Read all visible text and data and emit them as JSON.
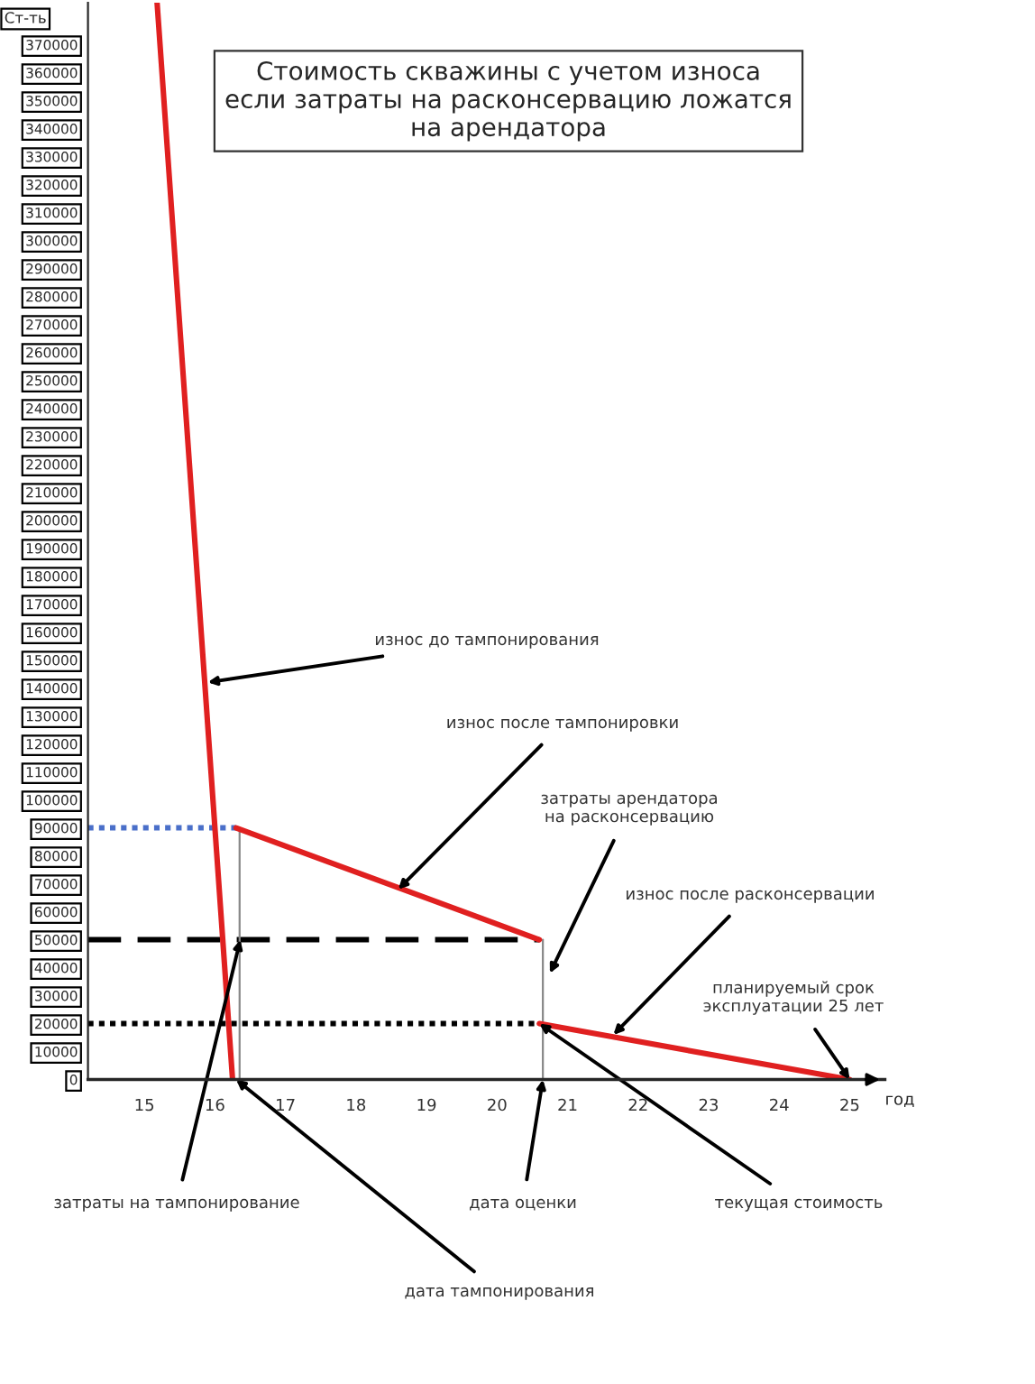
{
  "chart_data": {
    "type": "line",
    "title": "Стоимость скважины с учетом износа\nесли затраты на расконсервацию ложатся\nна арендатора",
    "xlabel": "год",
    "ylabel": "Ст-ть",
    "xlim": [
      14.2,
      25.5
    ],
    "xticks": [
      15,
      16,
      17,
      18,
      19,
      20,
      21,
      22,
      23,
      24,
      25
    ],
    "ylim": [
      0,
      385000
    ],
    "yticks": [
      0,
      10000,
      20000,
      30000,
      40000,
      50000,
      60000,
      70000,
      80000,
      90000,
      100000,
      110000,
      120000,
      130000,
      140000,
      150000,
      160000,
      170000,
      180000,
      190000,
      200000,
      210000,
      220000,
      230000,
      240000,
      250000,
      260000,
      270000,
      280000,
      290000,
      300000,
      310000,
      320000,
      330000,
      340000,
      350000,
      360000,
      370000
    ],
    "grid": false,
    "legend": false,
    "marker": "none",
    "series": [
      {
        "color": "#4a6fc9",
        "line_style": "dotted",
        "x": [
          14.2,
          16.3
        ],
        "values": [
          90000,
          90000
        ]
      },
      {
        "color": "#000000",
        "line_style": "dashed",
        "x": [
          14.2,
          20.6
        ],
        "values": [
          50000,
          50000
        ]
      },
      {
        "color": "#000000",
        "line_style": "dotted",
        "x": [
          14.2,
          20.6
        ],
        "values": [
          20000,
          20000
        ]
      },
      {
        "color": "#888888",
        "line_style": "solid",
        "x": [
          16.35,
          16.35
        ],
        "values": [
          0,
          90000
        ]
      },
      {
        "color": "#888888",
        "line_style": "solid",
        "x": [
          20.65,
          20.65
        ],
        "values": [
          0,
          50000
        ]
      },
      {
        "color": "#e02020",
        "line_style": "solid",
        "x": [
          15.18,
          16.25
        ],
        "values": [
          385000,
          0
        ]
      },
      {
        "color": "#e02020",
        "line_style": "solid",
        "x": [
          16.3,
          20.6
        ],
        "values": [
          90000,
          50000
        ]
      },
      {
        "color": "#e02020",
        "line_style": "solid",
        "x": [
          20.6,
          25
        ],
        "values": [
          20000,
          0
        ]
      }
    ],
    "annotations": [
      {
        "text": "износ до тампонирования",
        "x": 15.9,
        "y": 142000
      },
      {
        "text": "износ после тампонировки",
        "x": 18.6,
        "y": 68000
      },
      {
        "text": "затраты арендатора\nна расконсервацию",
        "x": 20.75,
        "y": 38000
      },
      {
        "text": "износ после расконсервации",
        "x": 21.65,
        "y": 16000
      },
      {
        "text": "планируемый срок\nэксплуатации 25 лет",
        "x": 25,
        "y": 0
      },
      {
        "text": "затраты на тампонирование",
        "x": 16.36,
        "y": 50000
      },
      {
        "text": "дата тампонирования",
        "x": 16.3,
        "y": 0
      },
      {
        "text": "дата оценки",
        "x": 20.65,
        "y": 0
      },
      {
        "text": "текущая стоимость",
        "x": 20.6,
        "y": 20000
      }
    ]
  }
}
